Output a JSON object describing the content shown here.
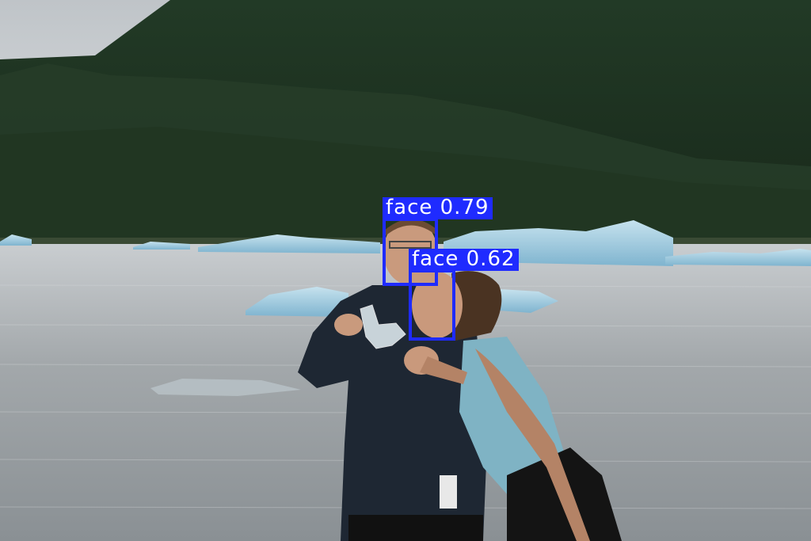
{
  "detections": [
    {
      "label": "face 0.79",
      "class": "face",
      "score": 0.79
    },
    {
      "label": "face 0.62",
      "class": "face",
      "score": 0.62
    }
  ],
  "colors": {
    "box": "#1f2bff",
    "label_text": "#ffffff",
    "sky": "#cfd3d6",
    "mountain": "#1f3322",
    "forest": "#243a26",
    "water": "#a9aeb1",
    "ice": "#9fcbe0"
  }
}
